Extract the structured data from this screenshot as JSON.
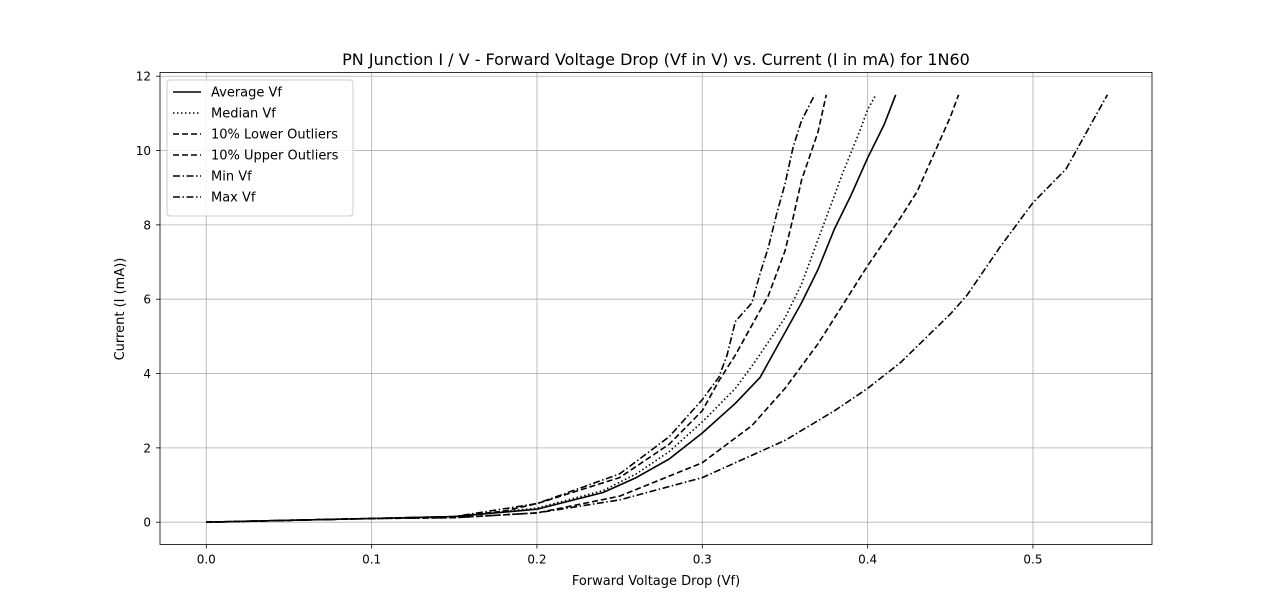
{
  "chart_data": {
    "type": "line",
    "title": "PN Junction I / V - Forward Voltage Drop (Vf in V) vs. Current (I in mA) for 1N60",
    "xlabel": "Forward Voltage Drop (Vf)",
    "ylabel": "Current (I (mA))",
    "xlim": [
      -0.028,
      0.572
    ],
    "ylim": [
      -0.6,
      12.1
    ],
    "xticks": [
      "0.0",
      "0.1",
      "0.2",
      "0.3",
      "0.4",
      "0.5"
    ],
    "yticks": [
      "0",
      "2",
      "4",
      "6",
      "8",
      "10",
      "12"
    ],
    "grid": true,
    "legend_position": "top-left",
    "line_color": "#000000",
    "series": [
      {
        "name": "Average Vf",
        "style": "solid",
        "x": [
          0.0,
          0.05,
          0.1,
          0.15,
          0.2,
          0.24,
          0.26,
          0.28,
          0.3,
          0.32,
          0.335,
          0.34,
          0.36,
          0.37,
          0.38,
          0.39,
          0.4,
          0.41,
          0.417
        ],
        "y": [
          0.0,
          0.05,
          0.1,
          0.15,
          0.35,
          0.8,
          1.2,
          1.7,
          2.4,
          3.2,
          3.9,
          4.3,
          5.9,
          6.8,
          7.9,
          8.8,
          9.8,
          10.7,
          11.5
        ]
      },
      {
        "name": "Median Vf",
        "style": "dotted",
        "x": [
          0.0,
          0.05,
          0.1,
          0.15,
          0.2,
          0.24,
          0.26,
          0.28,
          0.3,
          0.32,
          0.33,
          0.35,
          0.36,
          0.37,
          0.375,
          0.385,
          0.395,
          0.4,
          0.405
        ],
        "y": [
          0.0,
          0.05,
          0.1,
          0.15,
          0.38,
          0.85,
          1.3,
          1.9,
          2.7,
          3.6,
          4.2,
          5.5,
          6.4,
          7.6,
          8.2,
          9.4,
          10.5,
          11.1,
          11.5
        ]
      },
      {
        "name": "10% Lower Outliers",
        "style": "dashed",
        "x": [
          0.0,
          0.05,
          0.1,
          0.15,
          0.18,
          0.2,
          0.25,
          0.28,
          0.3,
          0.31,
          0.32,
          0.33,
          0.34,
          0.35,
          0.355,
          0.36,
          0.37,
          0.375
        ],
        "y": [
          0.0,
          0.05,
          0.1,
          0.15,
          0.3,
          0.5,
          1.2,
          2.1,
          3.0,
          3.8,
          4.5,
          5.3,
          6.1,
          7.3,
          8.2,
          9.2,
          10.5,
          11.5
        ]
      },
      {
        "name": "10% Upper Outliers",
        "style": "dashed",
        "x": [
          0.0,
          0.05,
          0.1,
          0.15,
          0.2,
          0.25,
          0.3,
          0.33,
          0.35,
          0.37,
          0.38,
          0.4,
          0.42,
          0.43,
          0.44,
          0.45,
          0.455
        ],
        "y": [
          0.0,
          0.05,
          0.1,
          0.12,
          0.25,
          0.7,
          1.6,
          2.6,
          3.6,
          4.8,
          5.5,
          6.9,
          8.2,
          8.9,
          9.9,
          10.9,
          11.5
        ]
      },
      {
        "name": "Min Vf",
        "style": "dashdot",
        "x": [
          0.0,
          0.05,
          0.1,
          0.15,
          0.2,
          0.25,
          0.28,
          0.3,
          0.31,
          0.315,
          0.32,
          0.33,
          0.335,
          0.34,
          0.345,
          0.35,
          0.355,
          0.36,
          0.368
        ],
        "y": [
          0.0,
          0.05,
          0.1,
          0.15,
          0.5,
          1.3,
          2.3,
          3.3,
          3.9,
          4.5,
          5.4,
          5.9,
          6.7,
          7.4,
          8.3,
          9.1,
          10.1,
          10.8,
          11.5
        ]
      },
      {
        "name": "Max Vf",
        "style": "dashdot",
        "x": [
          0.0,
          0.05,
          0.1,
          0.15,
          0.2,
          0.25,
          0.3,
          0.35,
          0.38,
          0.4,
          0.42,
          0.45,
          0.46,
          0.48,
          0.5,
          0.52,
          0.535,
          0.545
        ],
        "y": [
          0.0,
          0.05,
          0.1,
          0.12,
          0.25,
          0.6,
          1.2,
          2.2,
          3.0,
          3.6,
          4.3,
          5.6,
          6.1,
          7.4,
          8.6,
          9.5,
          10.7,
          11.5
        ]
      }
    ]
  }
}
